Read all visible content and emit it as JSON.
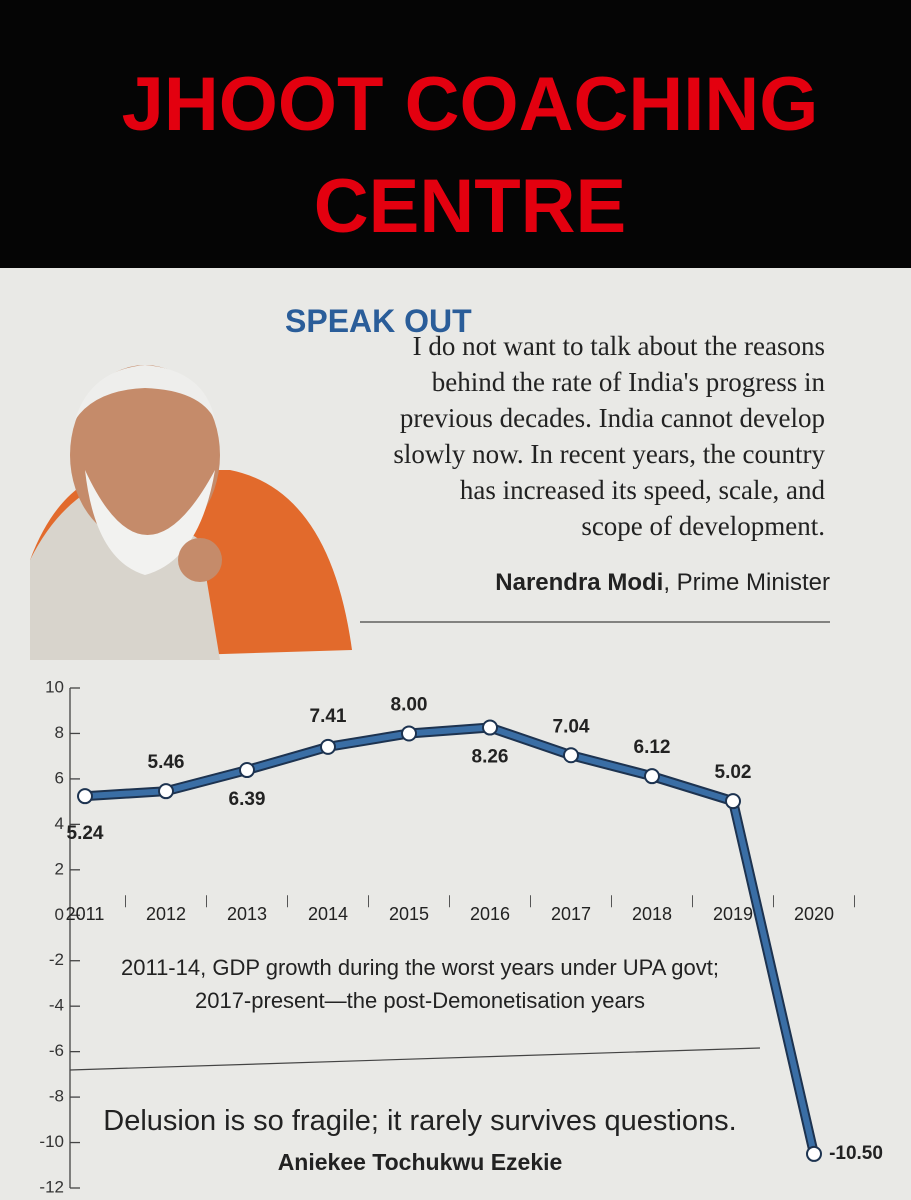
{
  "header": {
    "title_lines": [
      "JHOOT COACHING",
      "CENTRE"
    ]
  },
  "article": {
    "heading": "SPEAK OUT",
    "quote_lines": [
      "I do not want to talk about the reasons",
      "behind the rate of India's progress in",
      "previous decades. India cannot develop",
      "slowly now. In recent years, the country",
      "has increased its speed, scale, and",
      "scope of development."
    ],
    "speaker": "Narendra Modi",
    "speaker_role": ", Prime Minister"
  },
  "chart_data": {
    "type": "line",
    "categories": [
      "2011",
      "2012",
      "2013",
      "2014",
      "2015",
      "2016",
      "2017",
      "2018",
      "2019",
      "2020"
    ],
    "values": [
      5.24,
      5.46,
      6.39,
      7.41,
      8.0,
      8.26,
      7.04,
      6.12,
      5.02,
      -10.5
    ],
    "value_labels": [
      "5.24",
      "5.46",
      "6.39",
      "7.41",
      "8.00",
      "8.26",
      "7.04",
      "6.12",
      "5.02",
      "-10.50"
    ],
    "color": "#3a6ea5",
    "ylim": [
      -12,
      10
    ],
    "yticks": [
      -12,
      -10,
      -8,
      -6,
      -4,
      -2,
      0,
      2,
      4,
      6,
      8,
      10
    ],
    "caption_lines": [
      "2011-14, GDP growth during the worst years under UPA govt;",
      "2017-present—the post-Demonetisation years"
    ]
  },
  "footer": {
    "quote": "Delusion is so fragile; it rarely survives questions.",
    "author": "Aniekee Tochukwu Ezekie"
  }
}
